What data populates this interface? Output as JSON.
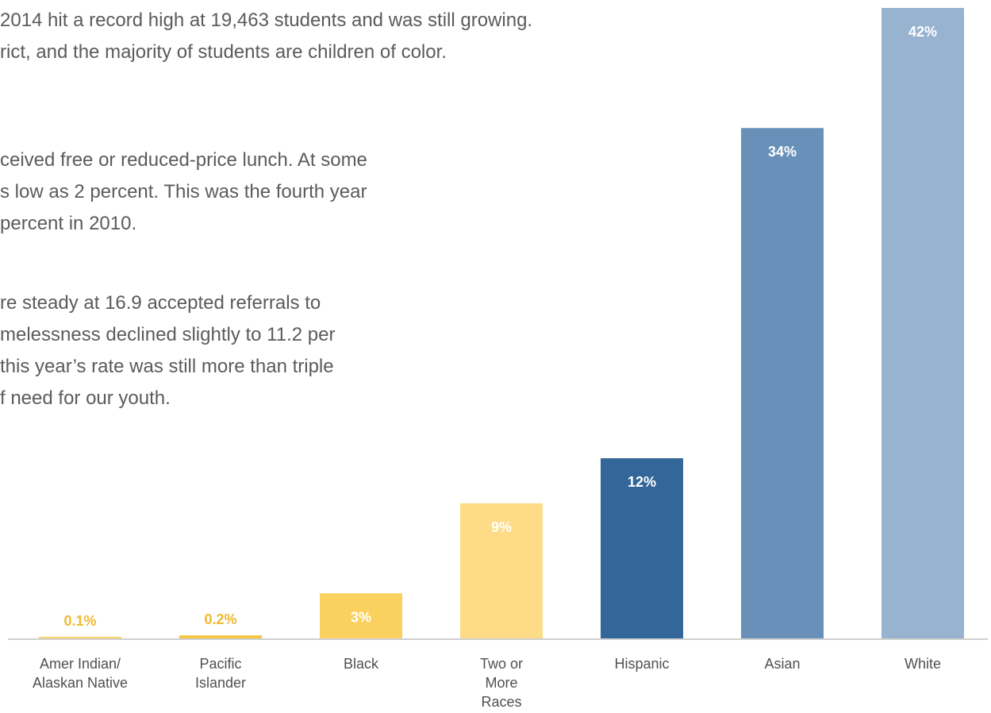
{
  "paragraphs": [
    [
      "2014 hit a record high at 19,463 students and was still growing.",
      "rict, and the majority of students are children of color."
    ],
    [
      "ceived free or reduced-price lunch. At some",
      "s low as 2 percent. This was the fourth year",
      "percent in 2010."
    ],
    [
      "re steady at 16.9 accepted referrals to",
      "melessness declined slightly to 11.2 per",
      "this year’s rate was still more than triple",
      "f need for our youth."
    ]
  ],
  "chart_data": {
    "type": "bar",
    "categories": [
      "Amer Indian/\nAlaskan Native",
      "Pacific\nIslander",
      "Black",
      "Two or\nMore\nRaces",
      "Hispanic",
      "Asian",
      "White"
    ],
    "values": [
      0.1,
      0.2,
      3,
      9,
      12,
      34,
      42
    ],
    "data_labels": [
      "0.1%",
      "0.2%",
      "3%",
      "9%",
      "12%",
      "34%",
      "42%"
    ],
    "unit": "%",
    "bar_colors": [
      "#fbd36b",
      "#f5c542",
      "#fad15e",
      "#fddb87",
      "#336699",
      "#6890b8",
      "#98b3cf"
    ],
    "label_colors": [
      "#f0b92e",
      "#f0b92e",
      "#ffffff",
      "#ffffff",
      "#ffffff",
      "#ffffff",
      "#ffffff"
    ],
    "label_position": [
      "above",
      "above",
      "inside",
      "inside",
      "inside",
      "inside",
      "inside"
    ],
    "axis_color": "#cfcfcf",
    "title": "",
    "xlabel": "",
    "ylabel": "",
    "ylim": [
      0,
      42
    ]
  }
}
